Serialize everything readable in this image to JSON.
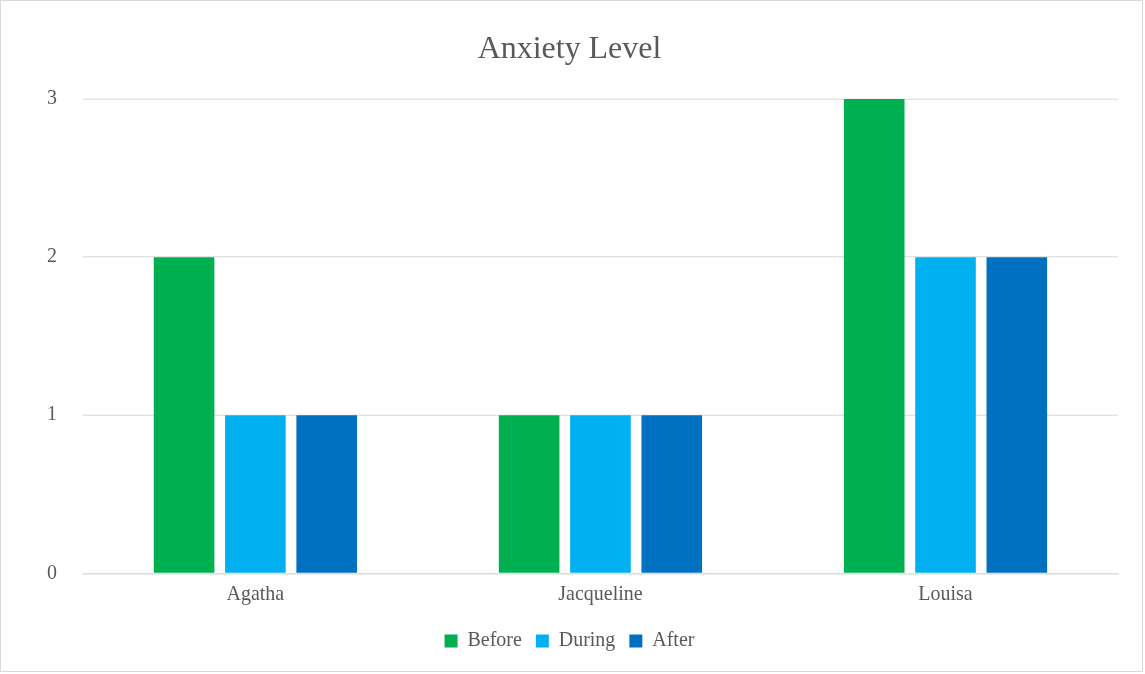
{
  "chart_data": {
    "type": "bar",
    "title": "Anxiety Level",
    "categories": [
      "Agatha",
      "Jacqueline",
      "Louisa"
    ],
    "series": [
      {
        "name": "Before",
        "color": "#00b050",
        "values": [
          2,
          1,
          3
        ]
      },
      {
        "name": "During",
        "color": "#00b0f0",
        "values": [
          1,
          1,
          2
        ]
      },
      {
        "name": "After",
        "color": "#0070c0",
        "values": [
          1,
          1,
          2
        ]
      }
    ],
    "ylim": [
      0,
      3
    ],
    "yticks": [
      0,
      1,
      2,
      3
    ],
    "grid": "y",
    "legend": "bottom"
  }
}
